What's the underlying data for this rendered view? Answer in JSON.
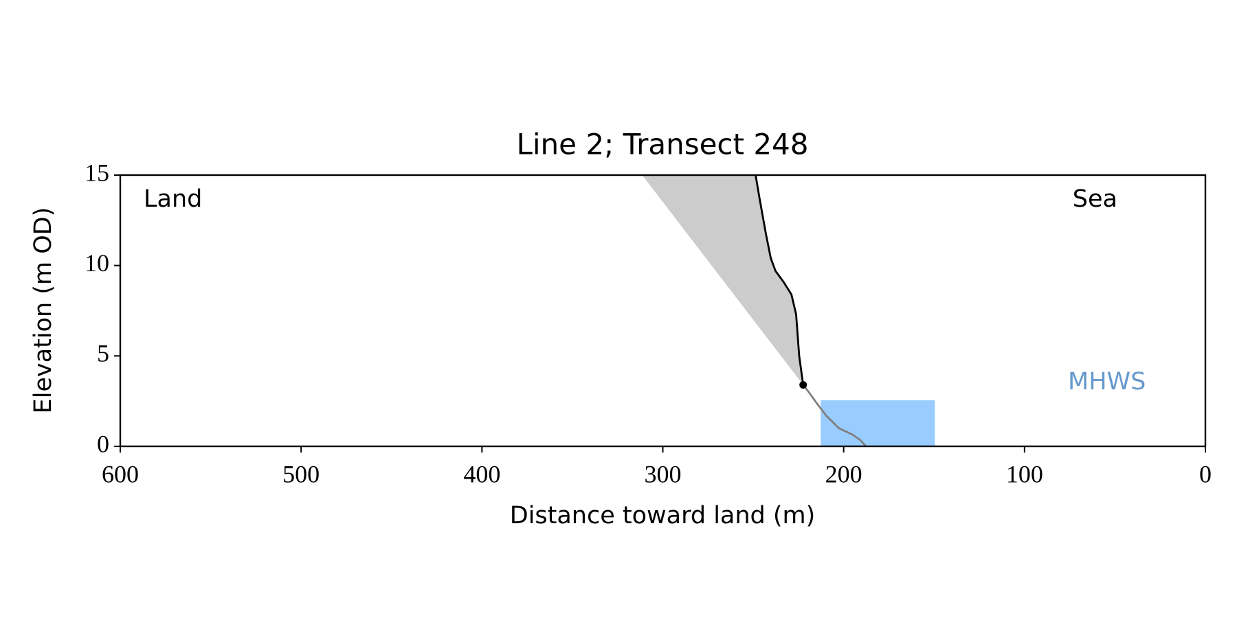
{
  "chart_data": {
    "type": "line",
    "title": "Line 2; Transect 248",
    "x_label": "Distance toward land (m)",
    "y_label": "Elevation (m OD)",
    "xlim": [
      600,
      0
    ],
    "ylim": [
      0,
      15
    ],
    "xticks": [
      600,
      500,
      400,
      300,
      200,
      100,
      0
    ],
    "yticks": [
      0,
      5,
      10,
      15
    ],
    "area": {
      "color": "#cccccc",
      "x": [
        311.4,
        248.7,
        246.5,
        243,
        240.3,
        237.7,
        233.3,
        228.9,
        226.3,
        224.6,
        222.4
      ],
      "values": [
        15,
        15,
        13.7,
        11.75,
        10.4,
        9.7,
        9.1,
        8.4,
        7.3,
        5.0,
        3.4
      ]
    },
    "band": {
      "color": "#99ccff",
      "x": [
        212.7,
        149.6
      ],
      "values": [
        0,
        2.55
      ]
    },
    "series": [
      {
        "color": "#000000",
        "x": [
          248.7,
          246.5,
          243,
          240.3,
          237.7,
          233.3,
          228.9,
          226.3,
          224.6,
          222.4
        ],
        "values": [
          15,
          13.7,
          11.75,
          10.4,
          9.7,
          9.1,
          8.4,
          7.3,
          5.0,
          3.4
        ]
      },
      {
        "color": "#808080",
        "x": [
          222.4,
          219.3,
          215,
          209.7,
          202.6,
          195.2,
          190.8,
          187.7
        ],
        "values": [
          3.4,
          3.0,
          2.4,
          1.7,
          1.0,
          0.65,
          0.35,
          0
        ]
      }
    ],
    "point": {
      "color": "#000000",
      "x": 222.4,
      "y": 3.4
    },
    "annotations": [
      {
        "text": "Land"
      },
      {
        "text": "Sea"
      },
      {
        "text": "MHWS",
        "color": "#6699cc"
      }
    ]
  }
}
